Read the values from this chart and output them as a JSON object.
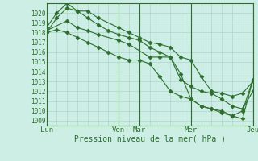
{
  "bg_color": "#cceee4",
  "grid_color": "#aacccc",
  "line_color": "#2d6e2d",
  "marker_color": "#2d6e2d",
  "ylabel_values": [
    1009,
    1010,
    1011,
    1012,
    1013,
    1014,
    1015,
    1016,
    1017,
    1018,
    1019,
    1020
  ],
  "ylim": [
    1008.5,
    1021.0
  ],
  "xlabel": "Pression niveau de la mer( hPa )",
  "xtick_labels": [
    "Lun",
    "Ven",
    "Mar",
    "Mer",
    "Jeu"
  ],
  "xtick_positions": [
    0,
    7,
    9,
    14,
    20
  ],
  "vlines": [
    0,
    7,
    9,
    14,
    20
  ],
  "xlim": [
    0,
    20
  ],
  "series1_x": [
    0,
    1,
    2,
    3,
    4,
    5,
    6,
    7,
    8,
    9,
    10,
    11,
    12,
    13,
    14,
    15,
    16,
    17,
    18,
    19,
    20
  ],
  "series1_y": [
    1018.0,
    1018.3,
    1018.0,
    1017.5,
    1017.0,
    1016.5,
    1016.0,
    1015.5,
    1015.2,
    1015.2,
    1014.8,
    1013.5,
    1012.0,
    1011.5,
    1011.2,
    1010.5,
    1010.2,
    1009.8,
    1009.5,
    1010.0,
    1013.2
  ],
  "series2_x": [
    0,
    1,
    2,
    3,
    4,
    5,
    7,
    8,
    9,
    10,
    11,
    12,
    13,
    14,
    15,
    16,
    17,
    18,
    19,
    20
  ],
  "series2_y": [
    1018.5,
    1020.0,
    1021.0,
    1020.2,
    1020.2,
    1019.5,
    1018.5,
    1018.0,
    1017.5,
    1017.0,
    1016.8,
    1016.5,
    1015.5,
    1015.2,
    1013.5,
    1012.0,
    1011.8,
    1011.5,
    1011.8,
    1013.0
  ],
  "series3_x": [
    0,
    1,
    2,
    3,
    4,
    5,
    6,
    7,
    8,
    9,
    10,
    11,
    12,
    13,
    14,
    15,
    16,
    17,
    18,
    19,
    20
  ],
  "series3_y": [
    1018.0,
    1019.5,
    1020.5,
    1020.2,
    1019.5,
    1018.8,
    1018.2,
    1017.8,
    1017.5,
    1017.2,
    1016.5,
    1016.0,
    1015.5,
    1013.2,
    1012.5,
    1012.0,
    1011.8,
    1011.2,
    1010.5,
    1010.2,
    1012.0
  ],
  "series4_x": [
    0,
    2,
    3,
    4,
    5,
    7,
    8,
    10,
    11,
    12,
    13,
    14,
    15,
    16,
    17,
    18,
    19,
    20
  ],
  "series4_y": [
    1018.2,
    1019.2,
    1018.5,
    1018.2,
    1017.8,
    1017.2,
    1016.8,
    1015.5,
    1015.5,
    1015.5,
    1013.8,
    1011.2,
    1010.5,
    1010.2,
    1010.0,
    1009.5,
    1009.2,
    1013.2
  ]
}
